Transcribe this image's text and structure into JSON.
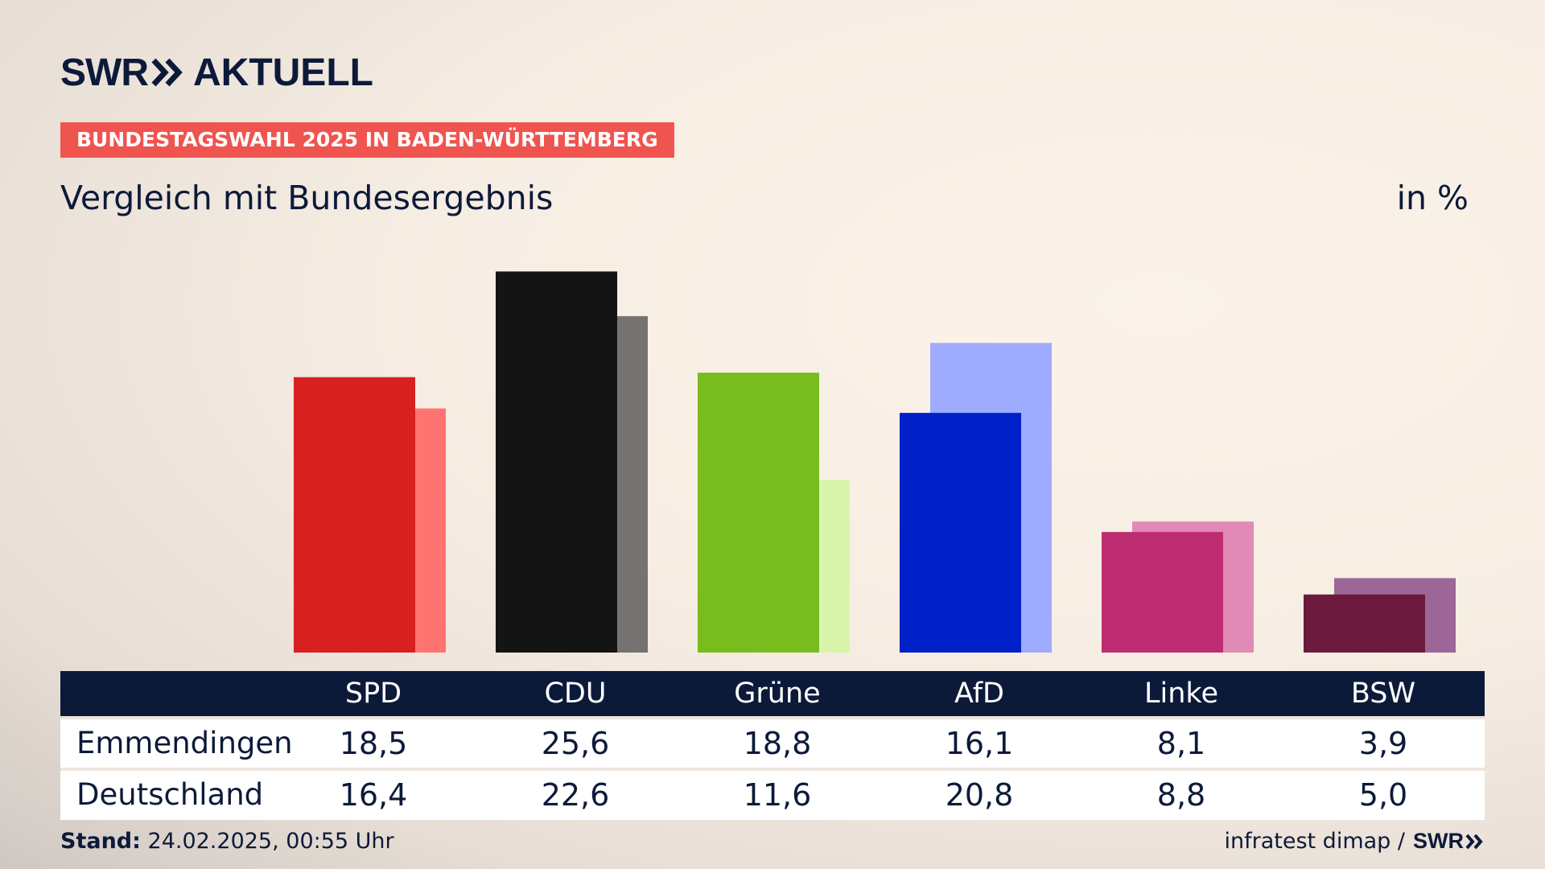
{
  "header": {
    "logo_swr": "SWR",
    "logo_aktuell": "AKTUELL",
    "badge": "BUNDESTAGSWAHL 2025 IN BADEN-WÜRTTEMBERG",
    "subtitle": "Vergleich mit Bundesergebnis",
    "unit": "in %"
  },
  "chart_data": {
    "type": "bar",
    "title": "Vergleich mit Bundesergebnis",
    "ylabel": "in %",
    "ylim": [
      0,
      26
    ],
    "categories": [
      "SPD",
      "CDU",
      "Grüne",
      "AfD",
      "Linke",
      "BSW"
    ],
    "series": [
      {
        "name": "Emmendingen",
        "values": [
          18.5,
          25.6,
          18.8,
          16.1,
          8.1,
          3.9
        ],
        "colors": [
          "#d82020",
          "#141414",
          "#78bc1e",
          "#0020c8",
          "#be2d72",
          "#6c1a3e"
        ]
      },
      {
        "name": "Deutschland",
        "values": [
          16.4,
          22.6,
          11.6,
          20.8,
          8.8,
          5.0
        ],
        "colors": [
          "#ff7470",
          "#757270",
          "#d9f5ac",
          "#9fabff",
          "#e08bb6",
          "#9c6699"
        ]
      }
    ]
  },
  "table": {
    "headers": [
      "SPD",
      "CDU",
      "Grüne",
      "AfD",
      "Linke",
      "BSW"
    ],
    "rows": [
      {
        "label": "Emmendingen",
        "values": [
          "18,5",
          "25,6",
          "18,8",
          "16,1",
          "8,1",
          "3,9"
        ]
      },
      {
        "label": "Deutschland",
        "values": [
          "16,4",
          "22,6",
          "11,6",
          "20,8",
          "8,8",
          "5,0"
        ]
      }
    ]
  },
  "footer": {
    "stand_label": "Stand:",
    "stand_value": "24.02.2025, 00:55 Uhr",
    "source": "infratest dimap /",
    "source_logo": "SWR"
  }
}
